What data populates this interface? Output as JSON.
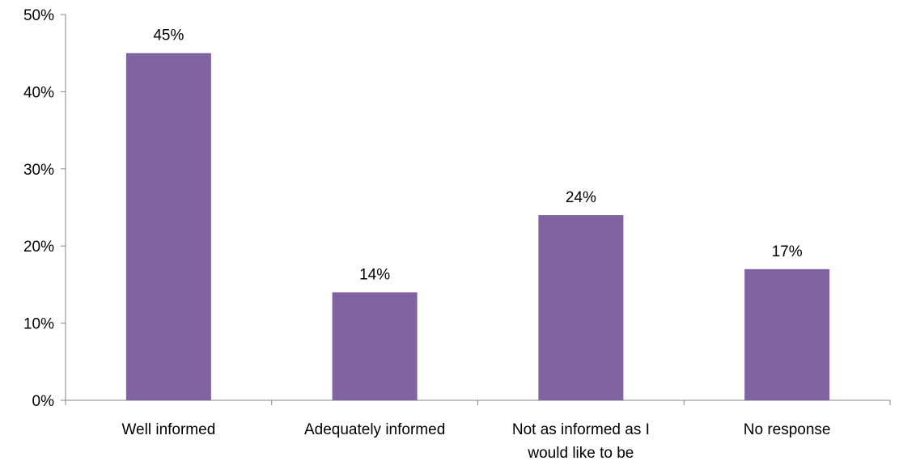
{
  "chart_data": {
    "type": "bar",
    "categories": [
      [
        "Well informed"
      ],
      [
        "Adequately informed"
      ],
      [
        "Not as informed as I",
        "would like to be"
      ],
      [
        "No response"
      ]
    ],
    "values": [
      45,
      14,
      24,
      17
    ],
    "data_labels": [
      "45%",
      "14%",
      "24%",
      "17%"
    ],
    "ylim": [
      0,
      50
    ],
    "yticks": [
      0,
      10,
      20,
      30,
      40,
      50
    ],
    "ytick_labels": [
      "0%",
      "10%",
      "20%",
      "30%",
      "40%",
      "50%"
    ],
    "title": "",
    "xlabel": "",
    "ylabel": "",
    "grid": false,
    "legend": "none",
    "bar_color": "#8064A2",
    "axis_color": "#868686"
  }
}
